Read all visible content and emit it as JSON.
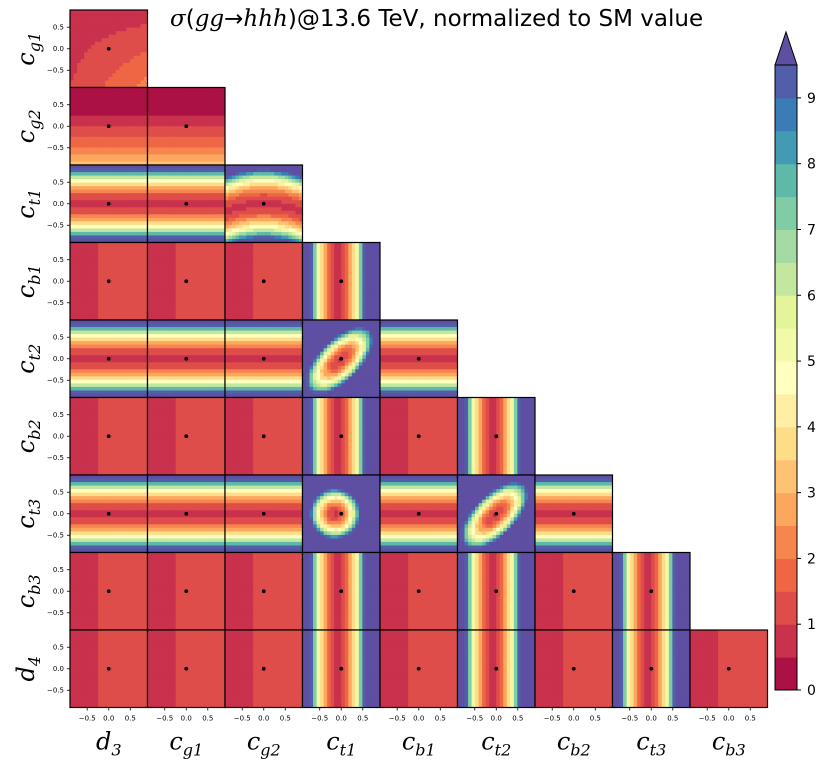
{
  "chart_data": {
    "type": "heatmap",
    "title_parts": {
      "sigma": "σ",
      "process_open": "(",
      "initial": "gg",
      "arrow": "→",
      "final": "hhh",
      "process_close": ")",
      "rest": "@13.6 TeV, normalized to SM value"
    },
    "parameters": [
      {
        "base": "d",
        "sub": "3"
      },
      {
        "base": "c",
        "sub": "g1"
      },
      {
        "base": "c",
        "sub": "g2"
      },
      {
        "base": "c",
        "sub": "t1"
      },
      {
        "base": "c",
        "sub": "b1"
      },
      {
        "base": "c",
        "sub": "t2"
      },
      {
        "base": "c",
        "sub": "b2"
      },
      {
        "base": "c",
        "sub": "t3"
      },
      {
        "base": "c",
        "sub": "b3"
      },
      {
        "base": "d",
        "sub": "4"
      }
    ],
    "axis_range": [
      -0.9,
      0.9
    ],
    "y_ticks": [
      {
        "value": 0.5,
        "label": "0.5"
      },
      {
        "value": 0.0,
        "label": "0.0"
      },
      {
        "value": -0.5,
        "label": "−0.5"
      }
    ],
    "x_ticks": [
      {
        "value": -0.5,
        "label": "−0.5"
      },
      {
        "value": 0.0,
        "label": "0.0"
      },
      {
        "value": 0.5,
        "label": "0.5"
      }
    ],
    "sm_point": [
      0,
      0
    ],
    "colorbar": {
      "min": 0,
      "max": 9.5,
      "levels": 19,
      "extend": "max",
      "tick_values": [
        0,
        1,
        2,
        3,
        4,
        5,
        6,
        7,
        8,
        9
      ],
      "tick_labels": [
        "0",
        "1",
        "2",
        "3",
        "4",
        "5",
        "6",
        "7",
        "8",
        "9"
      ],
      "colormap": [
        "#9e0142",
        "#d53e4f",
        "#f46d43",
        "#fdae61",
        "#fee08b",
        "#ffffbf",
        "#e6f598",
        "#abdda4",
        "#66c2a5",
        "#3288bd",
        "#5e4fa2"
      ]
    },
    "panels": [
      {
        "row": "c_g1",
        "col": "d_3",
        "model": "a*x+b*y+c*x*y"
      },
      {
        "row": "c_g2",
        "col": "d_3",
        "model": "1+y"
      },
      {
        "row": "c_g2",
        "col": "c_g1",
        "model": "1+y"
      },
      {
        "row": "c_t1",
        "col": "d_3",
        "model": "1+y^2"
      },
      {
        "row": "c_t1",
        "col": "c_g1",
        "model": "1+y^2"
      },
      {
        "row": "c_t1",
        "col": "c_g2",
        "model": "1+(y+x^2)^2"
      },
      {
        "row": "c_b1",
        "col": "d_3",
        "model": "1+x"
      },
      {
        "row": "c_b1",
        "col": "c_g1",
        "model": "1+x"
      },
      {
        "row": "c_b1",
        "col": "c_g2",
        "model": "1+x"
      },
      {
        "row": "c_b1",
        "col": "c_t1",
        "model": "1+x^2"
      },
      {
        "row": "c_t2",
        "col": "d_3",
        "model": "1+y^2"
      },
      {
        "row": "c_t2",
        "col": "c_g1",
        "model": "1+y^2"
      },
      {
        "row": "c_t2",
        "col": "c_g2",
        "model": "1+y^2"
      },
      {
        "row": "c_t2",
        "col": "c_t1",
        "model": "ellipse"
      },
      {
        "row": "c_t2",
        "col": "c_b1",
        "model": "1+y^2"
      },
      {
        "row": "c_b2",
        "col": "d_3",
        "model": "1+x"
      },
      {
        "row": "c_b2",
        "col": "c_g1",
        "model": "1+x"
      },
      {
        "row": "c_b2",
        "col": "c_g2",
        "model": "1+x"
      },
      {
        "row": "c_b2",
        "col": "c_t1",
        "model": "1+x^2"
      },
      {
        "row": "c_b2",
        "col": "c_b1",
        "model": "1+x"
      },
      {
        "row": "c_b2",
        "col": "c_t2",
        "model": "1+x^2"
      },
      {
        "row": "c_t3",
        "col": "d_3",
        "model": "1+y^2"
      },
      {
        "row": "c_t3",
        "col": "c_g1",
        "model": "1+y^2"
      },
      {
        "row": "c_t3",
        "col": "c_g2",
        "model": "1+y^2"
      },
      {
        "row": "c_t3",
        "col": "c_t1",
        "model": "circle"
      },
      {
        "row": "c_t3",
        "col": "c_b1",
        "model": "1+y^2"
      },
      {
        "row": "c_t3",
        "col": "c_t2",
        "model": "ellipse"
      },
      {
        "row": "c_t3",
        "col": "c_b2",
        "model": "1+y^2"
      },
      {
        "row": "c_b3",
        "col": "d_3",
        "model": "1+x"
      },
      {
        "row": "c_b3",
        "col": "c_g1",
        "model": "1+x"
      },
      {
        "row": "c_b3",
        "col": "c_g2",
        "model": "1+x"
      },
      {
        "row": "c_b3",
        "col": "c_t1",
        "model": "1+x^2"
      },
      {
        "row": "c_b3",
        "col": "c_b1",
        "model": "1+x"
      },
      {
        "row": "c_b3",
        "col": "c_t2",
        "model": "1+x^2"
      },
      {
        "row": "c_b3",
        "col": "c_b2",
        "model": "1+x"
      },
      {
        "row": "c_b3",
        "col": "c_t3",
        "model": "1+x^2"
      },
      {
        "row": "d_4",
        "col": "d_3",
        "model": "1+x"
      },
      {
        "row": "d_4",
        "col": "c_g1",
        "model": "1+x"
      },
      {
        "row": "d_4",
        "col": "c_g2",
        "model": "1+x"
      },
      {
        "row": "d_4",
        "col": "c_t1",
        "model": "1+x^2"
      },
      {
        "row": "d_4",
        "col": "c_b1",
        "model": "1+x"
      },
      {
        "row": "d_4",
        "col": "c_t2",
        "model": "1+x^2"
      },
      {
        "row": "d_4",
        "col": "c_b2",
        "model": "1+x"
      },
      {
        "row": "d_4",
        "col": "c_t3",
        "model": "1+x^2"
      },
      {
        "row": "d_4",
        "col": "c_b3",
        "model": "1+x"
      }
    ]
  }
}
